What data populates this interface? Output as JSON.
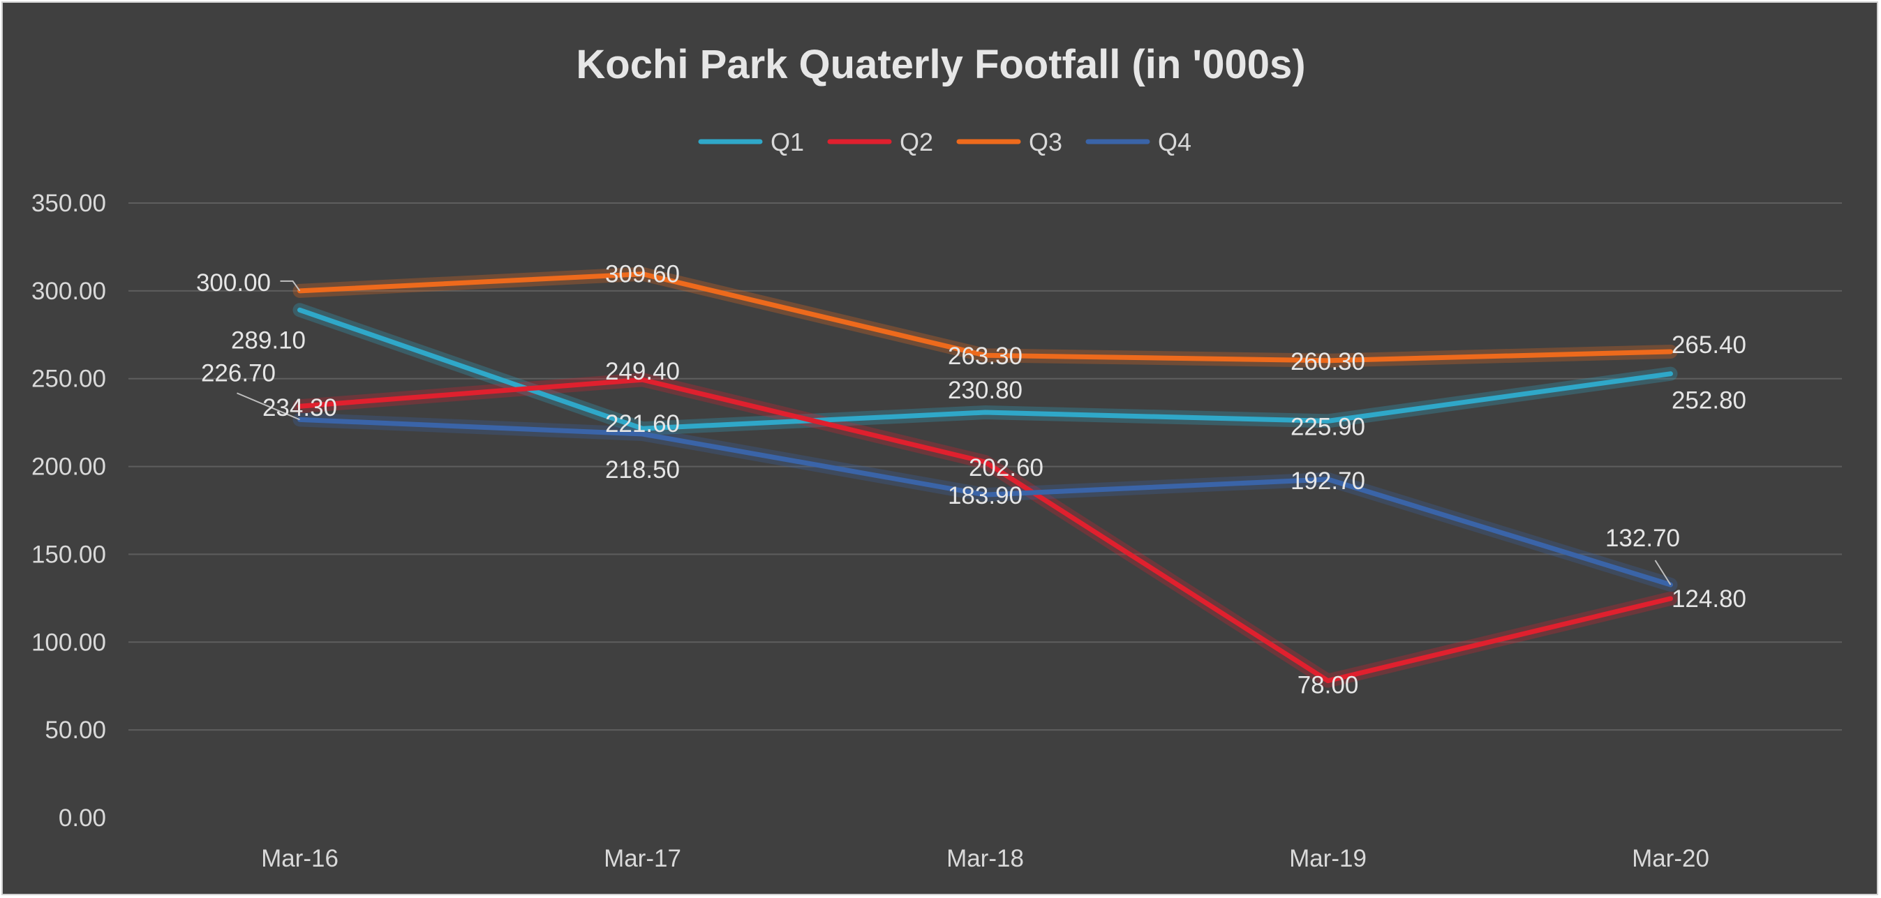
{
  "chart_data": {
    "type": "line",
    "title": "Kochi Park Quaterly Footfall (in '000s)",
    "xlabel": "",
    "ylabel": "",
    "categories": [
      "Mar-16",
      "Mar-17",
      "Mar-18",
      "Mar-19",
      "Mar-20"
    ],
    "ylim": [
      0,
      350
    ],
    "yticks": [
      "0.00",
      "50.00",
      "100.00",
      "150.00",
      "200.00",
      "250.00",
      "300.00",
      "350.00"
    ],
    "grid": true,
    "legend_position": "top",
    "series": [
      {
        "name": "Q1",
        "color": "#2fa8c9",
        "values": [
          289.1,
          221.6,
          230.8,
          225.9,
          252.8
        ],
        "labels": [
          "289.10",
          "221.60",
          "230.80",
          "225.90",
          "252.80"
        ]
      },
      {
        "name": "Q2",
        "color": "#e0202e",
        "values": [
          234.3,
          249.4,
          202.6,
          78.0,
          124.8
        ],
        "labels": [
          "234.30",
          "249.40",
          "202.60",
          "78.00",
          "124.80"
        ]
      },
      {
        "name": "Q3",
        "color": "#ee6a1c",
        "values": [
          300.0,
          309.6,
          263.3,
          260.3,
          265.4
        ],
        "labels": [
          "300.00",
          "309.60",
          "263.30",
          "260.30",
          "265.40"
        ]
      },
      {
        "name": "Q4",
        "color": "#3a64a8",
        "values": [
          226.7,
          218.5,
          183.9,
          192.7,
          132.7
        ],
        "labels": [
          "226.70",
          "218.50",
          "183.90",
          "192.70",
          "132.70"
        ]
      }
    ]
  }
}
